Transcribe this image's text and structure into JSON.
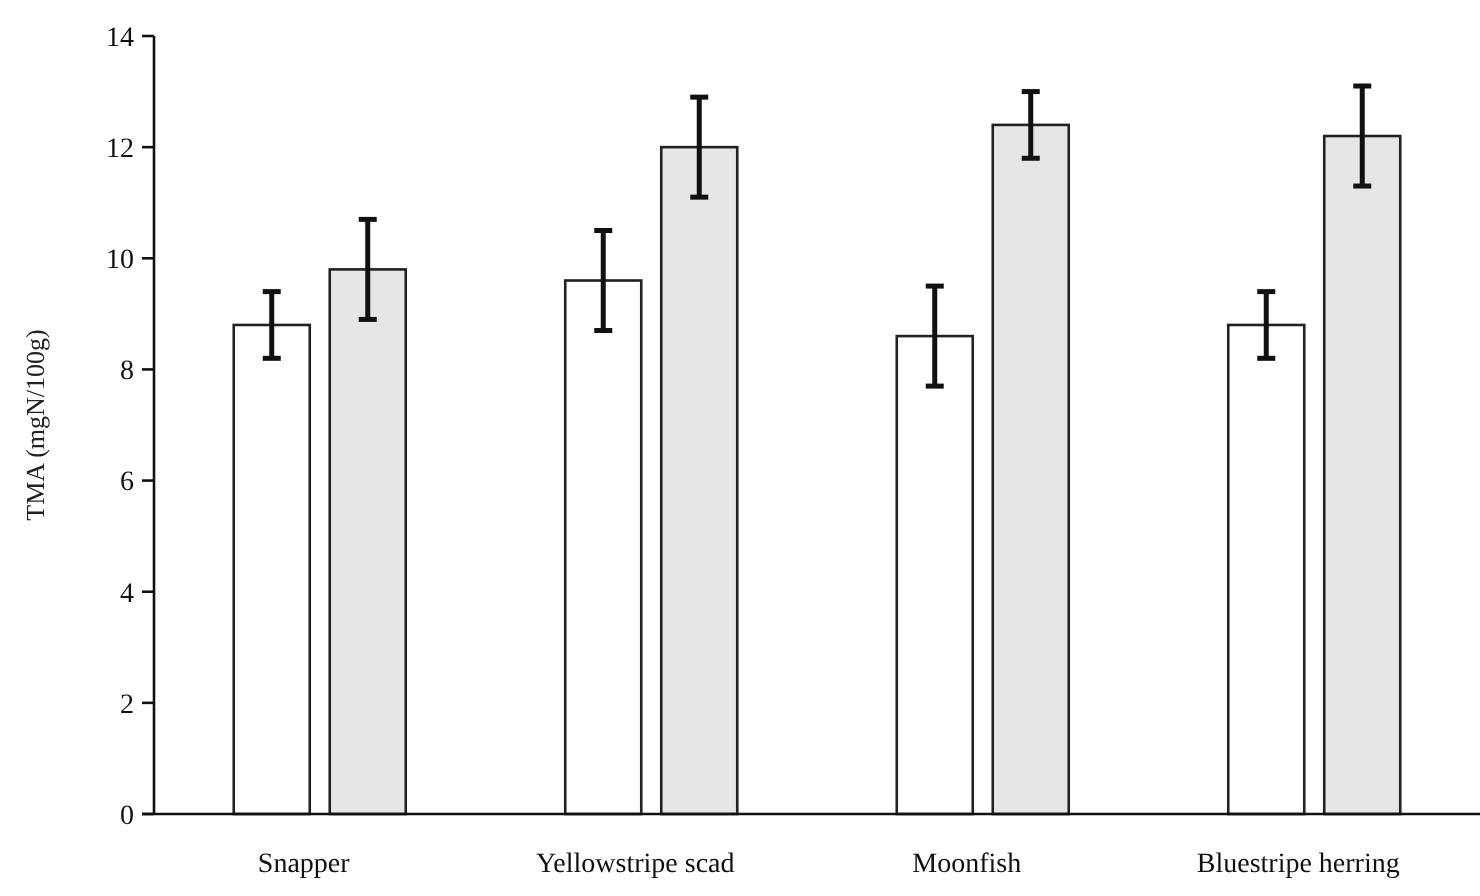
{
  "chart_data": {
    "type": "bar",
    "ylabel": "TMA (mgN/100g)",
    "categories": [
      "Snapper",
      "Yellowstripe scad",
      "Moonfish",
      "Bluestripe herring"
    ],
    "series": [
      {
        "color": "#ffffff",
        "values": [
          8.8,
          9.6,
          8.6,
          8.8
        ],
        "errors": [
          0.6,
          0.9,
          0.9,
          0.6
        ]
      },
      {
        "color": "#e6e6e6",
        "values": [
          9.8,
          12.0,
          12.4,
          12.2
        ],
        "errors": [
          0.9,
          0.9,
          0.6,
          0.9
        ]
      }
    ],
    "ylim": [
      0,
      14
    ],
    "yticks": [
      0,
      2,
      4,
      6,
      8,
      10,
      12,
      14
    ],
    "grid": false
  }
}
